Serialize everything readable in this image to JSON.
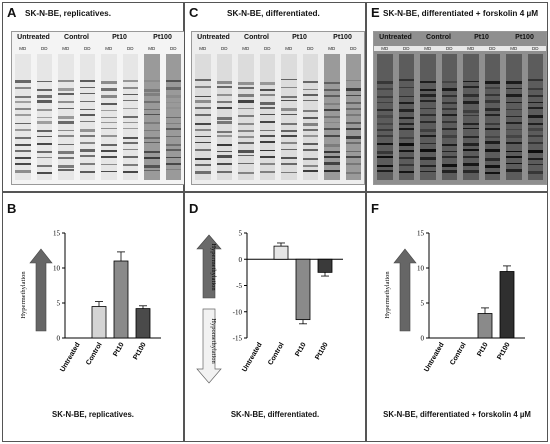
{
  "top_panels": [
    {
      "letter": "A",
      "title": "SK-N-BE, replicatives.",
      "tint": "light"
    },
    {
      "letter": "C",
      "title": "SK-N-BE, differentiated.",
      "tint": "mid"
    },
    {
      "letter": "E",
      "title": "SK-N-BE, differentiated + forskolin 4 µM",
      "tint": "dark"
    }
  ],
  "gel_groups": [
    "Untreated",
    "Control",
    "Pt10",
    "Pt100"
  ],
  "gel_lane_labels": [
    "MD",
    "DD"
  ],
  "bottom_panels": [
    {
      "letter": "B",
      "caption": "SK-N-BE, replicatives.",
      "arrow_label": "Hypermethylation"
    },
    {
      "letter": "D",
      "caption": "SK-N-BE, differentiated.",
      "arrow_label_up": "Hypermethylation",
      "arrow_label_down": "Hypomethylation"
    },
    {
      "letter": "F",
      "caption": "SK-N-BE, differentiated + forskolin 4 µM",
      "arrow_label": "Hypermethylation"
    }
  ],
  "chart_data": [
    {
      "type": "bar",
      "categories": [
        "Untreated",
        "Control",
        "Pt10",
        "Pt100"
      ],
      "values": [
        0,
        4.5,
        11.0,
        4.2
      ],
      "errors": [
        0,
        0.7,
        1.3,
        0.4
      ],
      "ylim": [
        0,
        15
      ],
      "yticks": [
        0,
        5,
        10,
        15
      ],
      "colors": [
        "#ffffff",
        "#d4d4d4",
        "#8a8a8a",
        "#4a4a4a"
      ]
    },
    {
      "type": "bar",
      "categories": [
        "Untreated",
        "Control",
        "Pt10",
        "Pt100"
      ],
      "values": [
        0,
        2.5,
        -11.5,
        -2.5
      ],
      "errors": [
        0,
        0.6,
        0.8,
        0.7
      ],
      "ylim": [
        -15,
        5
      ],
      "yticks": [
        5,
        0,
        -5,
        -10,
        -15
      ],
      "colors": [
        "#ffffff",
        "#e6e6e6",
        "#8a8a8a",
        "#3a3a3a"
      ]
    },
    {
      "type": "bar",
      "categories": [
        "Untreated",
        "Control",
        "Pt10",
        "Pt100"
      ],
      "values": [
        0,
        0,
        3.5,
        9.5
      ],
      "errors": [
        0,
        0,
        0.8,
        0.8
      ],
      "ylim": [
        0,
        15
      ],
      "yticks": [
        0,
        5,
        10,
        15
      ],
      "colors": [
        "#ffffff",
        "#ffffff",
        "#8a8a8a",
        "#2f2f2f"
      ]
    }
  ]
}
